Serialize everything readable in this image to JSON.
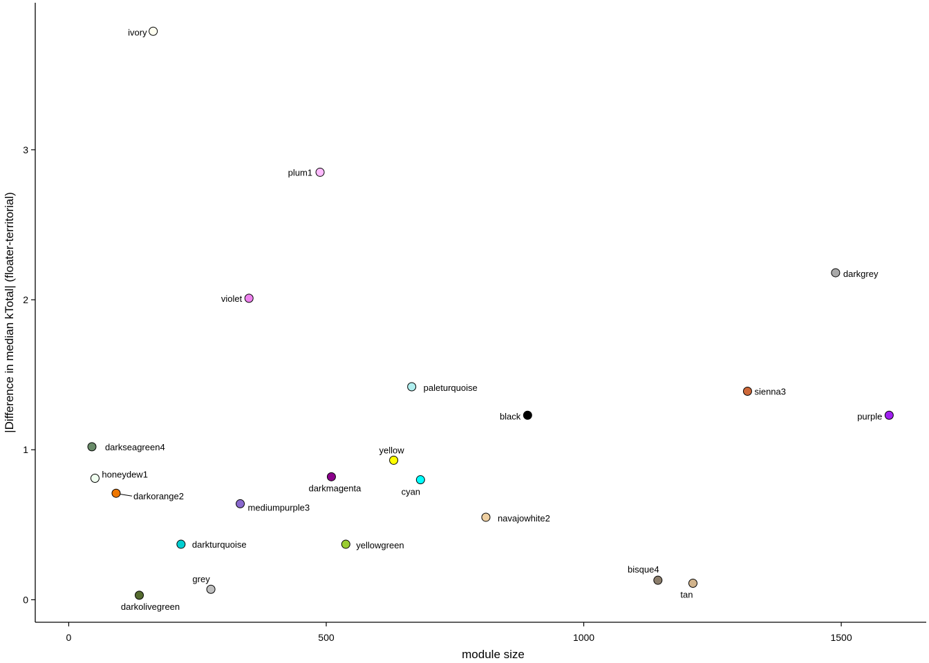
{
  "chart_data": {
    "type": "scatter",
    "xlabel": "module size",
    "ylabel": "|Difference in median kTotal| (floater-territorial)",
    "xlim": [
      -65,
      1665
    ],
    "ylim": [
      -0.15,
      3.98
    ],
    "x_ticks": [
      0,
      500,
      1000,
      1500
    ],
    "y_ticks": [
      0,
      1,
      2,
      3
    ],
    "grid": false,
    "points": [
      {
        "label": "ivory",
        "x": 164,
        "y": 3.79,
        "color": "#FFFFF0"
      },
      {
        "label": "plum1",
        "x": 488,
        "y": 2.85,
        "color": "#FFBBFF"
      },
      {
        "label": "darkgrey",
        "x": 1489,
        "y": 2.18,
        "color": "#A9A9A9"
      },
      {
        "label": "violet",
        "x": 350,
        "y": 2.01,
        "color": "#EE82EE"
      },
      {
        "label": "paleturquoise",
        "x": 666,
        "y": 1.42,
        "color": "#AFEEEE"
      },
      {
        "label": "sienna3",
        "x": 1318,
        "y": 1.39,
        "color": "#CD6839"
      },
      {
        "label": "black",
        "x": 891,
        "y": 1.23,
        "color": "#000000"
      },
      {
        "label": "purple",
        "x": 1593,
        "y": 1.23,
        "color": "#A020F0"
      },
      {
        "label": "darkseagreen4",
        "x": 45,
        "y": 1.02,
        "color": "#698B69"
      },
      {
        "label": "yellow",
        "x": 631,
        "y": 0.93,
        "color": "#FFFF00"
      },
      {
        "label": "darkmagenta",
        "x": 510,
        "y": 0.82,
        "color": "#8B008B"
      },
      {
        "label": "honeydew1",
        "x": 51,
        "y": 0.81,
        "color": "#F0FFF0"
      },
      {
        "label": "cyan",
        "x": 683,
        "y": 0.8,
        "color": "#00FFFF"
      },
      {
        "label": "darkorange2",
        "x": 92,
        "y": 0.71,
        "color": "#EE7600"
      },
      {
        "label": "mediumpurple3",
        "x": 333,
        "y": 0.64,
        "color": "#8968CD"
      },
      {
        "label": "navajowhite2",
        "x": 810,
        "y": 0.55,
        "color": "#EECFA1"
      },
      {
        "label": "darkturquoise",
        "x": 218,
        "y": 0.37,
        "color": "#00CED1"
      },
      {
        "label": "yellowgreen",
        "x": 538,
        "y": 0.37,
        "color": "#9ACD32"
      },
      {
        "label": "bisque4",
        "x": 1144,
        "y": 0.13,
        "color": "#8B7D6B"
      },
      {
        "label": "tan",
        "x": 1212,
        "y": 0.11,
        "color": "#D2B48C"
      },
      {
        "label": "grey",
        "x": 276,
        "y": 0.07,
        "color": "#BEBEBE"
      },
      {
        "label": "darkolivegreen",
        "x": 137,
        "y": 0.03,
        "color": "#556B2F"
      }
    ]
  }
}
